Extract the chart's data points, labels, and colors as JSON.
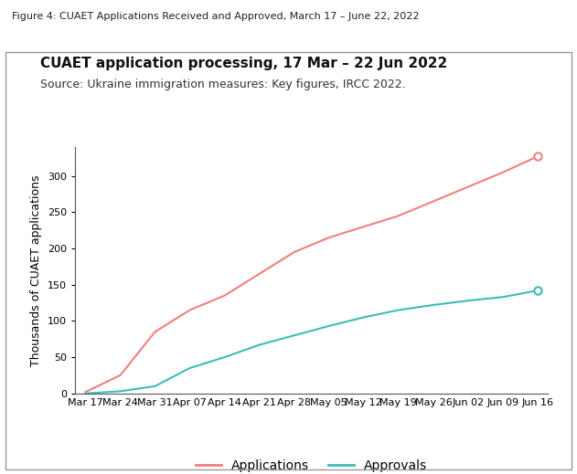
{
  "title": "CUAET application processing, 17 Mar – 22 Jun 2022",
  "subtitle": "Source: Ukraine immigration measures: Key figures, IRCC 2022.",
  "figure_label": "Figure 4: CUAET Applications Received and Approved, March 17 – June 22, 2022",
  "ylabel": "Thousands of CUAET applications",
  "x_tick_labels": [
    "Mar 17",
    "Mar 24",
    "Mar 31",
    "Apr 07",
    "Apr 14",
    "Apr 21",
    "Apr 28",
    "May 05",
    "May 12",
    "May 19",
    "May 26",
    "Jun 02",
    "Jun 09",
    "Jun 16"
  ],
  "applications": [
    2,
    25,
    85,
    115,
    135,
    165,
    195,
    215,
    230,
    245,
    265,
    285,
    305,
    327
  ],
  "approvals": [
    0,
    3,
    10,
    35,
    50,
    67,
    80,
    93,
    105,
    115,
    122,
    128,
    133,
    142
  ],
  "app_color": "#F08080",
  "appr_color": "#3DBDB5",
  "background_color": "#FFFFFF",
  "ylim": [
    0,
    340
  ],
  "yticks": [
    0,
    50,
    100,
    150,
    200,
    250,
    300
  ],
  "legend_labels": [
    "Applications",
    "Approvals"
  ],
  "title_fontsize": 11,
  "subtitle_fontsize": 9,
  "figure_label_fontsize": 8,
  "axis_label_fontsize": 9,
  "tick_fontsize": 8,
  "legend_fontsize": 10
}
